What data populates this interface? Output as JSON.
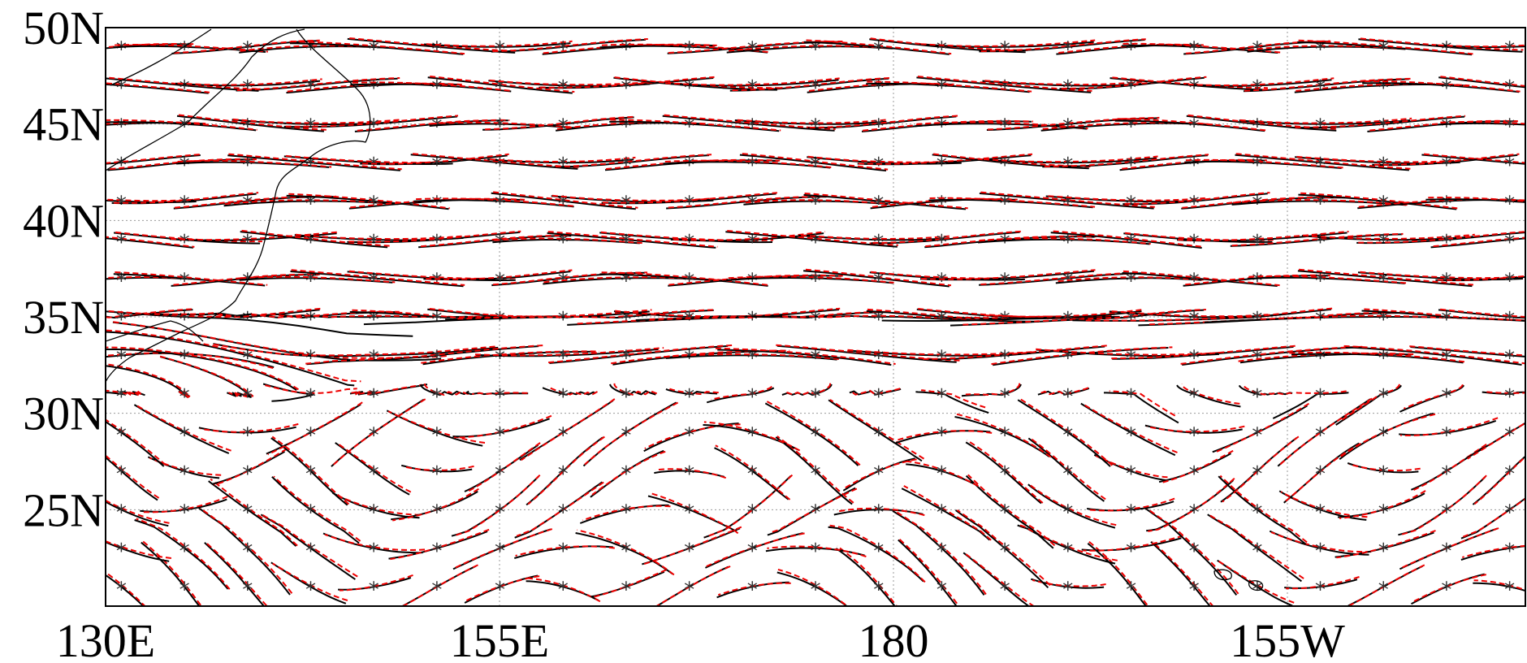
{
  "map": {
    "lat_labels": [
      "50N",
      "45N",
      "40N",
      "35N",
      "30N",
      "25N"
    ],
    "lon_labels": [
      "130E",
      "155E",
      "180",
      "155W"
    ]
  }
}
